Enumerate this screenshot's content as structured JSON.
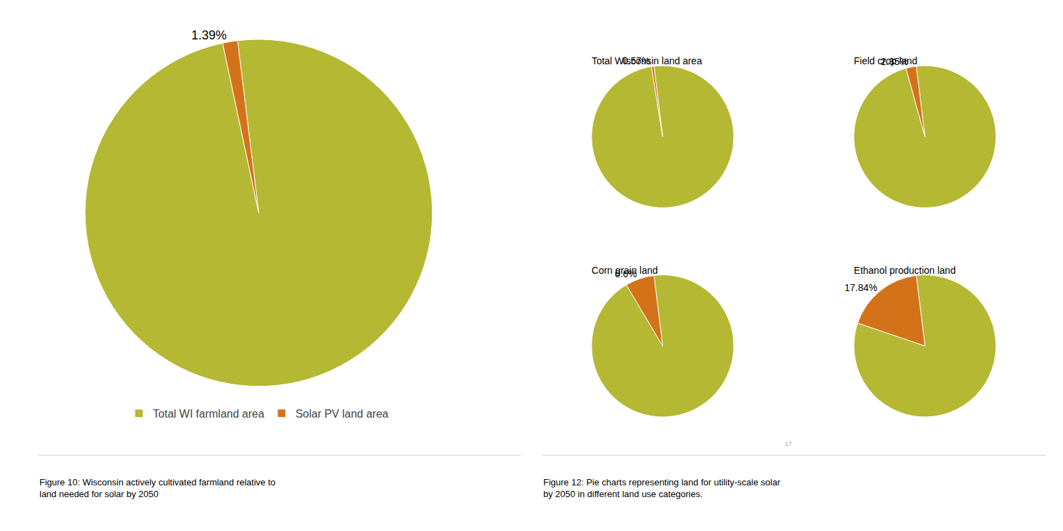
{
  "chart_data": [
    {
      "type": "pie",
      "categories": [
        "Total WI farmland area",
        "Solar PV land area"
      ],
      "values": [
        98.61,
        1.39
      ],
      "value_labels": [
        null,
        "1.39%"
      ],
      "colors": [
        "#b5b832",
        "#d4721a"
      ],
      "legend": "bottom",
      "annotations": [
        "Figure 10: Wisconsin actively cultivated farmland relative to\nland needed for solar by 2050"
      ]
    },
    {
      "type": "pie",
      "title": "Total Wisconsin land area",
      "values": [
        99.43,
        0.57
      ],
      "value_labels": [
        null,
        "0.57%"
      ],
      "colors": [
        "#b5b832",
        "#d4721a"
      ],
      "annotations": [
        "Figure 12: Pie charts representing land for utility-scale solar\nby 2050 in different land use categories.",
        "17"
      ]
    },
    {
      "type": "pie",
      "title": "Field crop land",
      "values": [
        97.65,
        2.35
      ],
      "value_labels": [
        null,
        "2.35%"
      ],
      "colors": [
        "#b5b832",
        "#d4721a"
      ]
    },
    {
      "type": "pie",
      "title": "Corn grain land",
      "values": [
        93.4,
        6.6
      ],
      "value_labels": [
        null,
        "6.6%"
      ],
      "colors": [
        "#b5b832",
        "#d4721a"
      ]
    },
    {
      "type": "pie",
      "title": "Ethanol production land",
      "values": [
        82.16,
        17.84
      ],
      "value_labels": [
        null,
        "17.84%"
      ],
      "colors": [
        "#b5b832",
        "#d4721a"
      ]
    }
  ]
}
